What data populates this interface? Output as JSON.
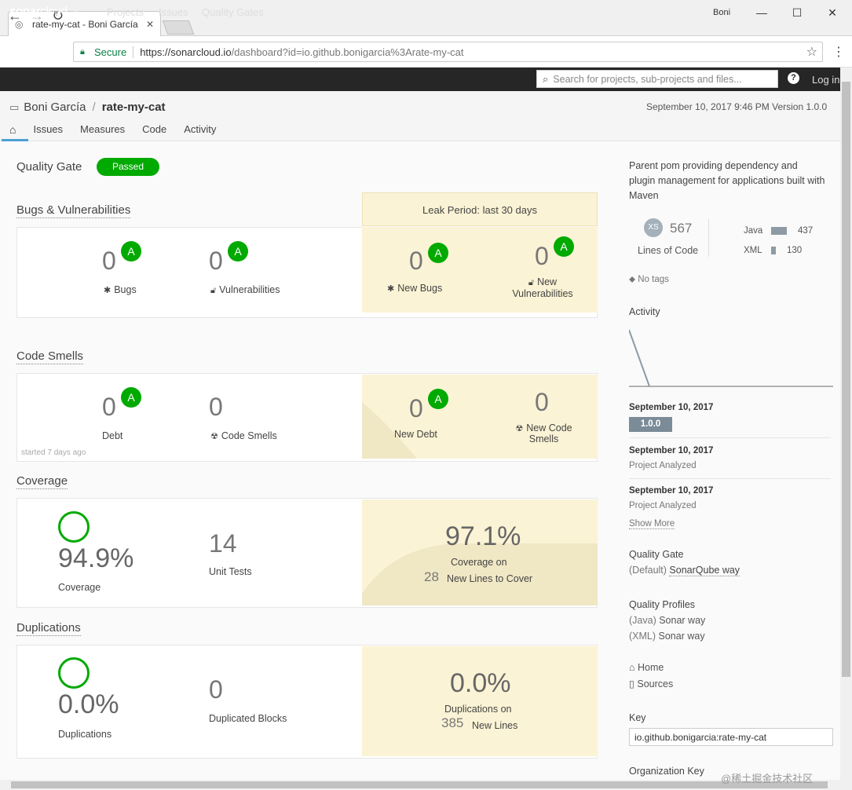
{
  "browser": {
    "tab_title": "rate-my-cat - Boni García",
    "user": "Boni",
    "secure_label": "Secure",
    "url_host": "https://sonarcloud.io",
    "url_path": "/dashboard?id=io.github.bonigarcia%3Arate-my-cat"
  },
  "nav": {
    "logo_bold": "sonar",
    "logo_thin": "cloud",
    "links": [
      "Projects",
      "Issues",
      "Quality Gates"
    ],
    "search_placeholder": "Search for projects, sub-projects and files...",
    "help": "?",
    "login": "Log in"
  },
  "project": {
    "owner": "Boni García",
    "name": "rate-my-cat",
    "date_version": "September 10, 2017 9:46 PM   Version 1.0.0",
    "tabs": [
      "Issues",
      "Measures",
      "Code",
      "Activity"
    ]
  },
  "quality_gate": {
    "label": "Quality Gate",
    "status": "Passed"
  },
  "leak_period": "Leak Period: last 30 days",
  "bugs": {
    "title": "Bugs & Vulnerabilities",
    "bugs_value": "0",
    "bugs_rating": "A",
    "bugs_label": "Bugs",
    "vuln_value": "0",
    "vuln_rating": "A",
    "vuln_label": "Vulnerabilities",
    "new_bugs_value": "0",
    "new_bugs_rating": "A",
    "new_bugs_label": "New Bugs",
    "new_vuln_value": "0",
    "new_vuln_rating": "A",
    "new_vuln_label_1": "New",
    "new_vuln_label_2": "Vulnerabilities"
  },
  "smells": {
    "title": "Code Smells",
    "debt_value": "0",
    "debt_rating": "A",
    "debt_label": "Debt",
    "smells_value": "0",
    "smells_label": "Code Smells",
    "started": "started 7 days ago",
    "new_debt_value": "0",
    "new_debt_rating": "A",
    "new_debt_label": "New Debt",
    "new_smells_value": "0",
    "new_smells_label_1": "New Code",
    "new_smells_label_2": "Smells"
  },
  "coverage": {
    "title": "Coverage",
    "value": "94.9%",
    "label": "Coverage",
    "tests_value": "14",
    "tests_label": "Unit Tests",
    "new_value": "97.1%",
    "new_label": "Coverage on",
    "new_lines_value": "28",
    "new_lines_label": "New Lines to Cover"
  },
  "duplications": {
    "title": "Duplications",
    "value": "0.0%",
    "label": "Duplications",
    "blocks_value": "0",
    "blocks_label": "Duplicated Blocks",
    "new_value": "0.0%",
    "new_label": "Duplications on",
    "new_lines_value": "385",
    "new_lines_label": "New Lines"
  },
  "sidebar": {
    "description": "Parent pom providing dependency and plugin management for applications built with Maven",
    "size_badge": "XS",
    "loc_value": "567",
    "loc_label": "Lines of Code",
    "languages": [
      {
        "name": "Java",
        "value": "437",
        "count": 437
      },
      {
        "name": "XML",
        "value": "130",
        "count": 130
      }
    ],
    "no_tags": "No tags",
    "activity_title": "Activity",
    "events": [
      {
        "date": "September 10, 2017",
        "version": "1.0.0"
      },
      {
        "date": "September 10, 2017",
        "sub": "Project Analyzed"
      },
      {
        "date": "September 10, 2017",
        "sub": "Project Analyzed"
      }
    ],
    "show_more": "Show More",
    "qg_title": "Quality Gate",
    "qg_default": "(Default)",
    "qg_name": "SonarQube way",
    "profiles_title": "Quality Profiles",
    "profile_java_lang": "(Java)",
    "profile_java": "Sonar way",
    "profile_xml_lang": "(XML)",
    "profile_xml": "Sonar way",
    "home": "Home",
    "sources": "Sources",
    "key_title": "Key",
    "key_value": "io.github.bonigarcia:rate-my-cat",
    "org_key_title": "Organization Key"
  },
  "watermark": "@稀土掘金技术社区"
}
